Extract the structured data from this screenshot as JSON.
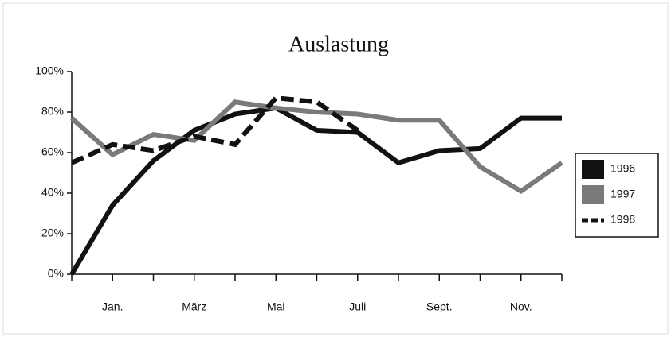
{
  "chart_data": {
    "type": "line",
    "title": "Auslastung",
    "categories": [
      null,
      "Jan.",
      null,
      "März",
      null,
      "Mai",
      null,
      "Juli",
      null,
      "Sept.",
      null,
      "Nov.",
      null
    ],
    "series": [
      {
        "name": "1996",
        "color": "#111111",
        "dash": false,
        "values": [
          0,
          34,
          56,
          71,
          79,
          82,
          71,
          70,
          55,
          61,
          62,
          77,
          77
        ]
      },
      {
        "name": "1997",
        "color": "#7a7a7a",
        "dash": false,
        "values": [
          77,
          59,
          69,
          66,
          85,
          82,
          80,
          79,
          76,
          76,
          53,
          41,
          55
        ]
      },
      {
        "name": "1998",
        "color": "#111111",
        "dash": true,
        "values": [
          55,
          64,
          61,
          68,
          64,
          87,
          85,
          71,
          null,
          null,
          null,
          null,
          null
        ]
      }
    ],
    "ylim": [
      0,
      100
    ],
    "yticks": [
      {
        "value": 0,
        "label": "0%"
      },
      {
        "value": 20,
        "label": "20%"
      },
      {
        "value": 40,
        "label": "40%"
      },
      {
        "value": 60,
        "label": "60%"
      },
      {
        "value": 80,
        "label": "80%"
      },
      {
        "value": 100,
        "label": "100%"
      }
    ],
    "legend": "right"
  }
}
